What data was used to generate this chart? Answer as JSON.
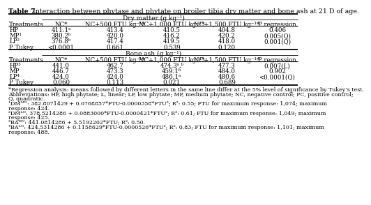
{
  "title_bold": "Table 7.",
  "title_rest": " Interaction between phytase and phytate on broiler tibia dry matter and bone ash at 21 D of age.",
  "section1_header": "Dry matter (g kg⁻¹)",
  "section2_header": "Bone ash (g kg⁻¹)",
  "col_headers": [
    "Treatments",
    "NC*",
    "NC+500 FTU kg⁻¹*",
    "NC+1,000 FTU kg⁻¹*",
    "NC+1,500 FTU kg⁻¹*",
    "P regression"
  ],
  "dm_rows": [
    [
      "HP",
      "411.1ᵃ",
      "413.4",
      "410.5",
      "404.8",
      "0.406"
    ],
    [
      "MP¹",
      "380.2ᵇ",
      "420.0",
      "416.2",
      "420.2",
      "0.005(Q)"
    ],
    [
      "LP²",
      "376.8ᵇ",
      "417.4",
      "419.5",
      "418.0",
      "0.001(Q)"
    ],
    [
      "P Tukey",
      "<0.0001",
      "0.661",
      "0.539",
      "0.120",
      ""
    ]
  ],
  "ba_rows": [
    [
      "HP³",
      "441.0",
      "462.7",
      "474.3ᵃ,ᵇ",
      "477.3",
      "0.007(L)"
    ],
    [
      "MP",
      "446.7",
      "473.3",
      "459.1ᵇ",
      "484.0",
      "0.902"
    ],
    [
      "LP⁴",
      "424.0",
      "424.0",
      "486.1ᵃ",
      "480.6",
      "<0.0001(Q)"
    ],
    [
      "P Tukey",
      "0.060",
      "0.113",
      "0.021",
      "0.689",
      ""
    ]
  ],
  "footnote_lines": [
    "*Regression analysis: means followed by different letters in the same line differ at the 5% level of significance by Tukey’s test.",
    "Abbreviations: HP, high phytate; L, linear; LP, low phytate; MP, medium phytate; NC, negative control; PC, positive control;",
    "Q, quadratic.",
    "¹DMᴹᴺ: 382.8071429 + 0.0768857*FTU-0.0000358*FTU²; R²: 0.55; FTU for maximum response: 1,074; maximum",
    "response: 424.",
    "²DMᴸᴺ: 378.5214286 + 0.0883000*FTU-0.0000421*FTU²; R²: 0.61; FTU for maximum response: 1,049; maximum",
    "response: 425.",
    "³BAᴴᴺ: 441.0814286 + 5.5192202*FTU; R²: 0.50.",
    "⁴BAᴸᴺ: 424.5314286 + 0.1158629*FTU-0.0000526*FTU²; R²: 0.83; FTU for maximum response: 1,101; maximum",
    "response: 488."
  ],
  "col_x_left": [
    4,
    68,
    155,
    255,
    360,
    455
  ],
  "col_x_center": [
    100,
    200,
    305,
    407,
    500
  ],
  "bg_color": "#ffffff"
}
